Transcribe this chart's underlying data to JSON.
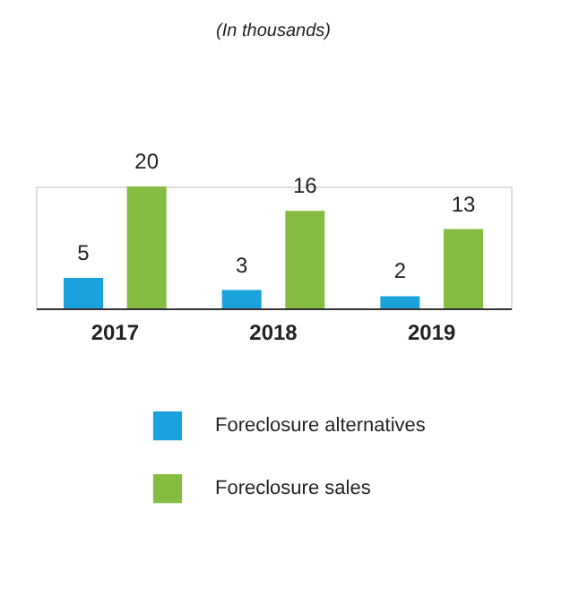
{
  "chart_data": {
    "type": "bar",
    "subtitle": "(In thousands)",
    "categories": [
      "2017",
      "2018",
      "2019"
    ],
    "series": [
      {
        "name": "Foreclosure alternatives",
        "color": "#1ba1db",
        "values": [
          5,
          3,
          2
        ]
      },
      {
        "name": "Foreclosure sales",
        "color": "#85bc42",
        "values": [
          20,
          16,
          13
        ]
      }
    ],
    "data_labels": true,
    "legend": "bottom",
    "grid": false,
    "tick_labels": "x"
  }
}
